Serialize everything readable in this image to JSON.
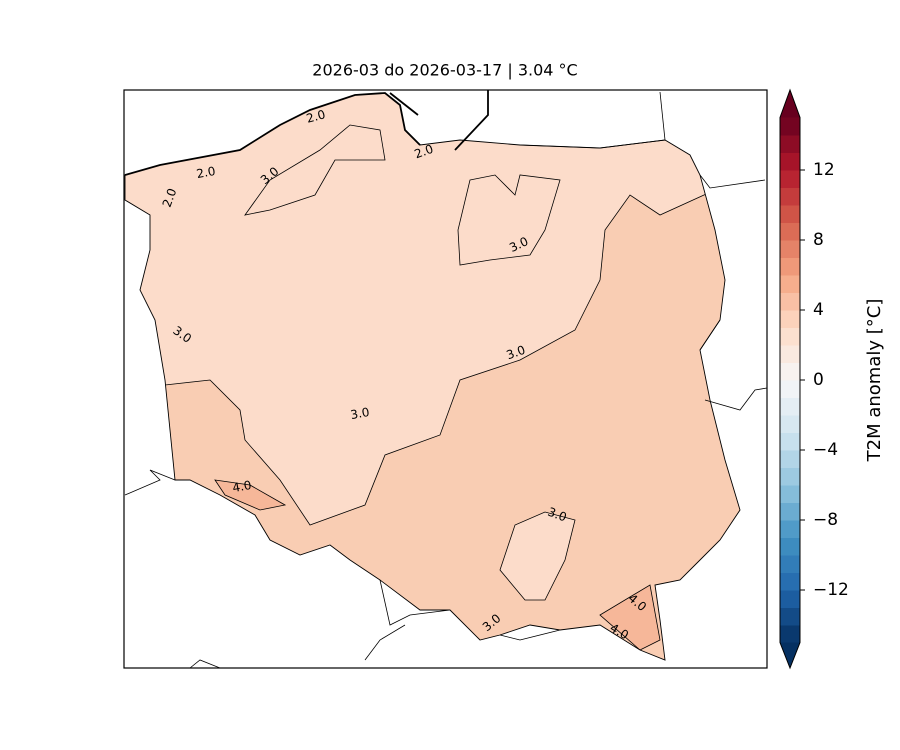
{
  "map": {
    "title": "2026-03 do 2026-03-17 | 3.04 °C",
    "contour_labels": [
      "2.0",
      "2.0",
      "2.0",
      "2.0",
      "3.0",
      "3.0",
      "3.0",
      "3.0",
      "3.0",
      "4.0",
      "3.0",
      "4.0",
      "3.0",
      "4.0"
    ],
    "colorbar": {
      "label": "T2M anomaly [°C]",
      "lim": [
        -15,
        15
      ],
      "ticks": [
        {
          "value": -12,
          "label": "−12"
        },
        {
          "value": -8,
          "label": "−8"
        },
        {
          "value": -4,
          "label": "−4"
        },
        0,
        4,
        8,
        12
      ],
      "colors": [
        "#053061",
        "#2166ac",
        "#4393c3",
        "#92c5de",
        "#d1e5f0",
        "#f7f7f7",
        "#fddbc7",
        "#f4a582",
        "#d6604d",
        "#b2182b",
        "#67001f"
      ]
    }
  }
}
